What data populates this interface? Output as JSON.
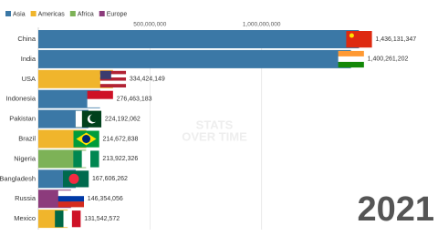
{
  "chart_data": {
    "type": "bar",
    "orientation": "horizontal",
    "legend": [
      {
        "name": "Asia",
        "color": "#3b78a6"
      },
      {
        "name": "Americas",
        "color": "#f0b52c"
      },
      {
        "name": "Africa",
        "color": "#7db257"
      },
      {
        "name": "Europe",
        "color": "#8c3b7c"
      }
    ],
    "categories": [
      "China",
      "India",
      "USA",
      "Indonesia",
      "Pakistan",
      "Brazil",
      "Nigeria",
      "Bangladesh",
      "Russia",
      "Mexico"
    ],
    "regions": [
      "Asia",
      "Asia",
      "Americas",
      "Asia",
      "Asia",
      "Americas",
      "Africa",
      "Asia",
      "Europe",
      "Americas"
    ],
    "values": [
      1436131347,
      1400261202,
      334424149,
      276463183,
      224192062,
      214672838,
      213922326,
      167606262,
      146354056,
      131542572
    ],
    "value_labels": [
      "1,436,131,347",
      "1,400,261,202",
      "334,424,149",
      "276,463,183",
      "224,192,062",
      "214,672,838",
      "213,922,326",
      "167,606,262",
      "146,354,056",
      "131,542,572"
    ],
    "xlim": [
      0,
      1790000000
    ],
    "xticks": [
      {
        "value": 500000000,
        "label": "500,000,000"
      },
      {
        "value": 1000000000,
        "label": "1,000,000,000"
      }
    ],
    "grid": true,
    "year": "2021",
    "watermark": [
      "STATS",
      "OVER TIME"
    ]
  }
}
